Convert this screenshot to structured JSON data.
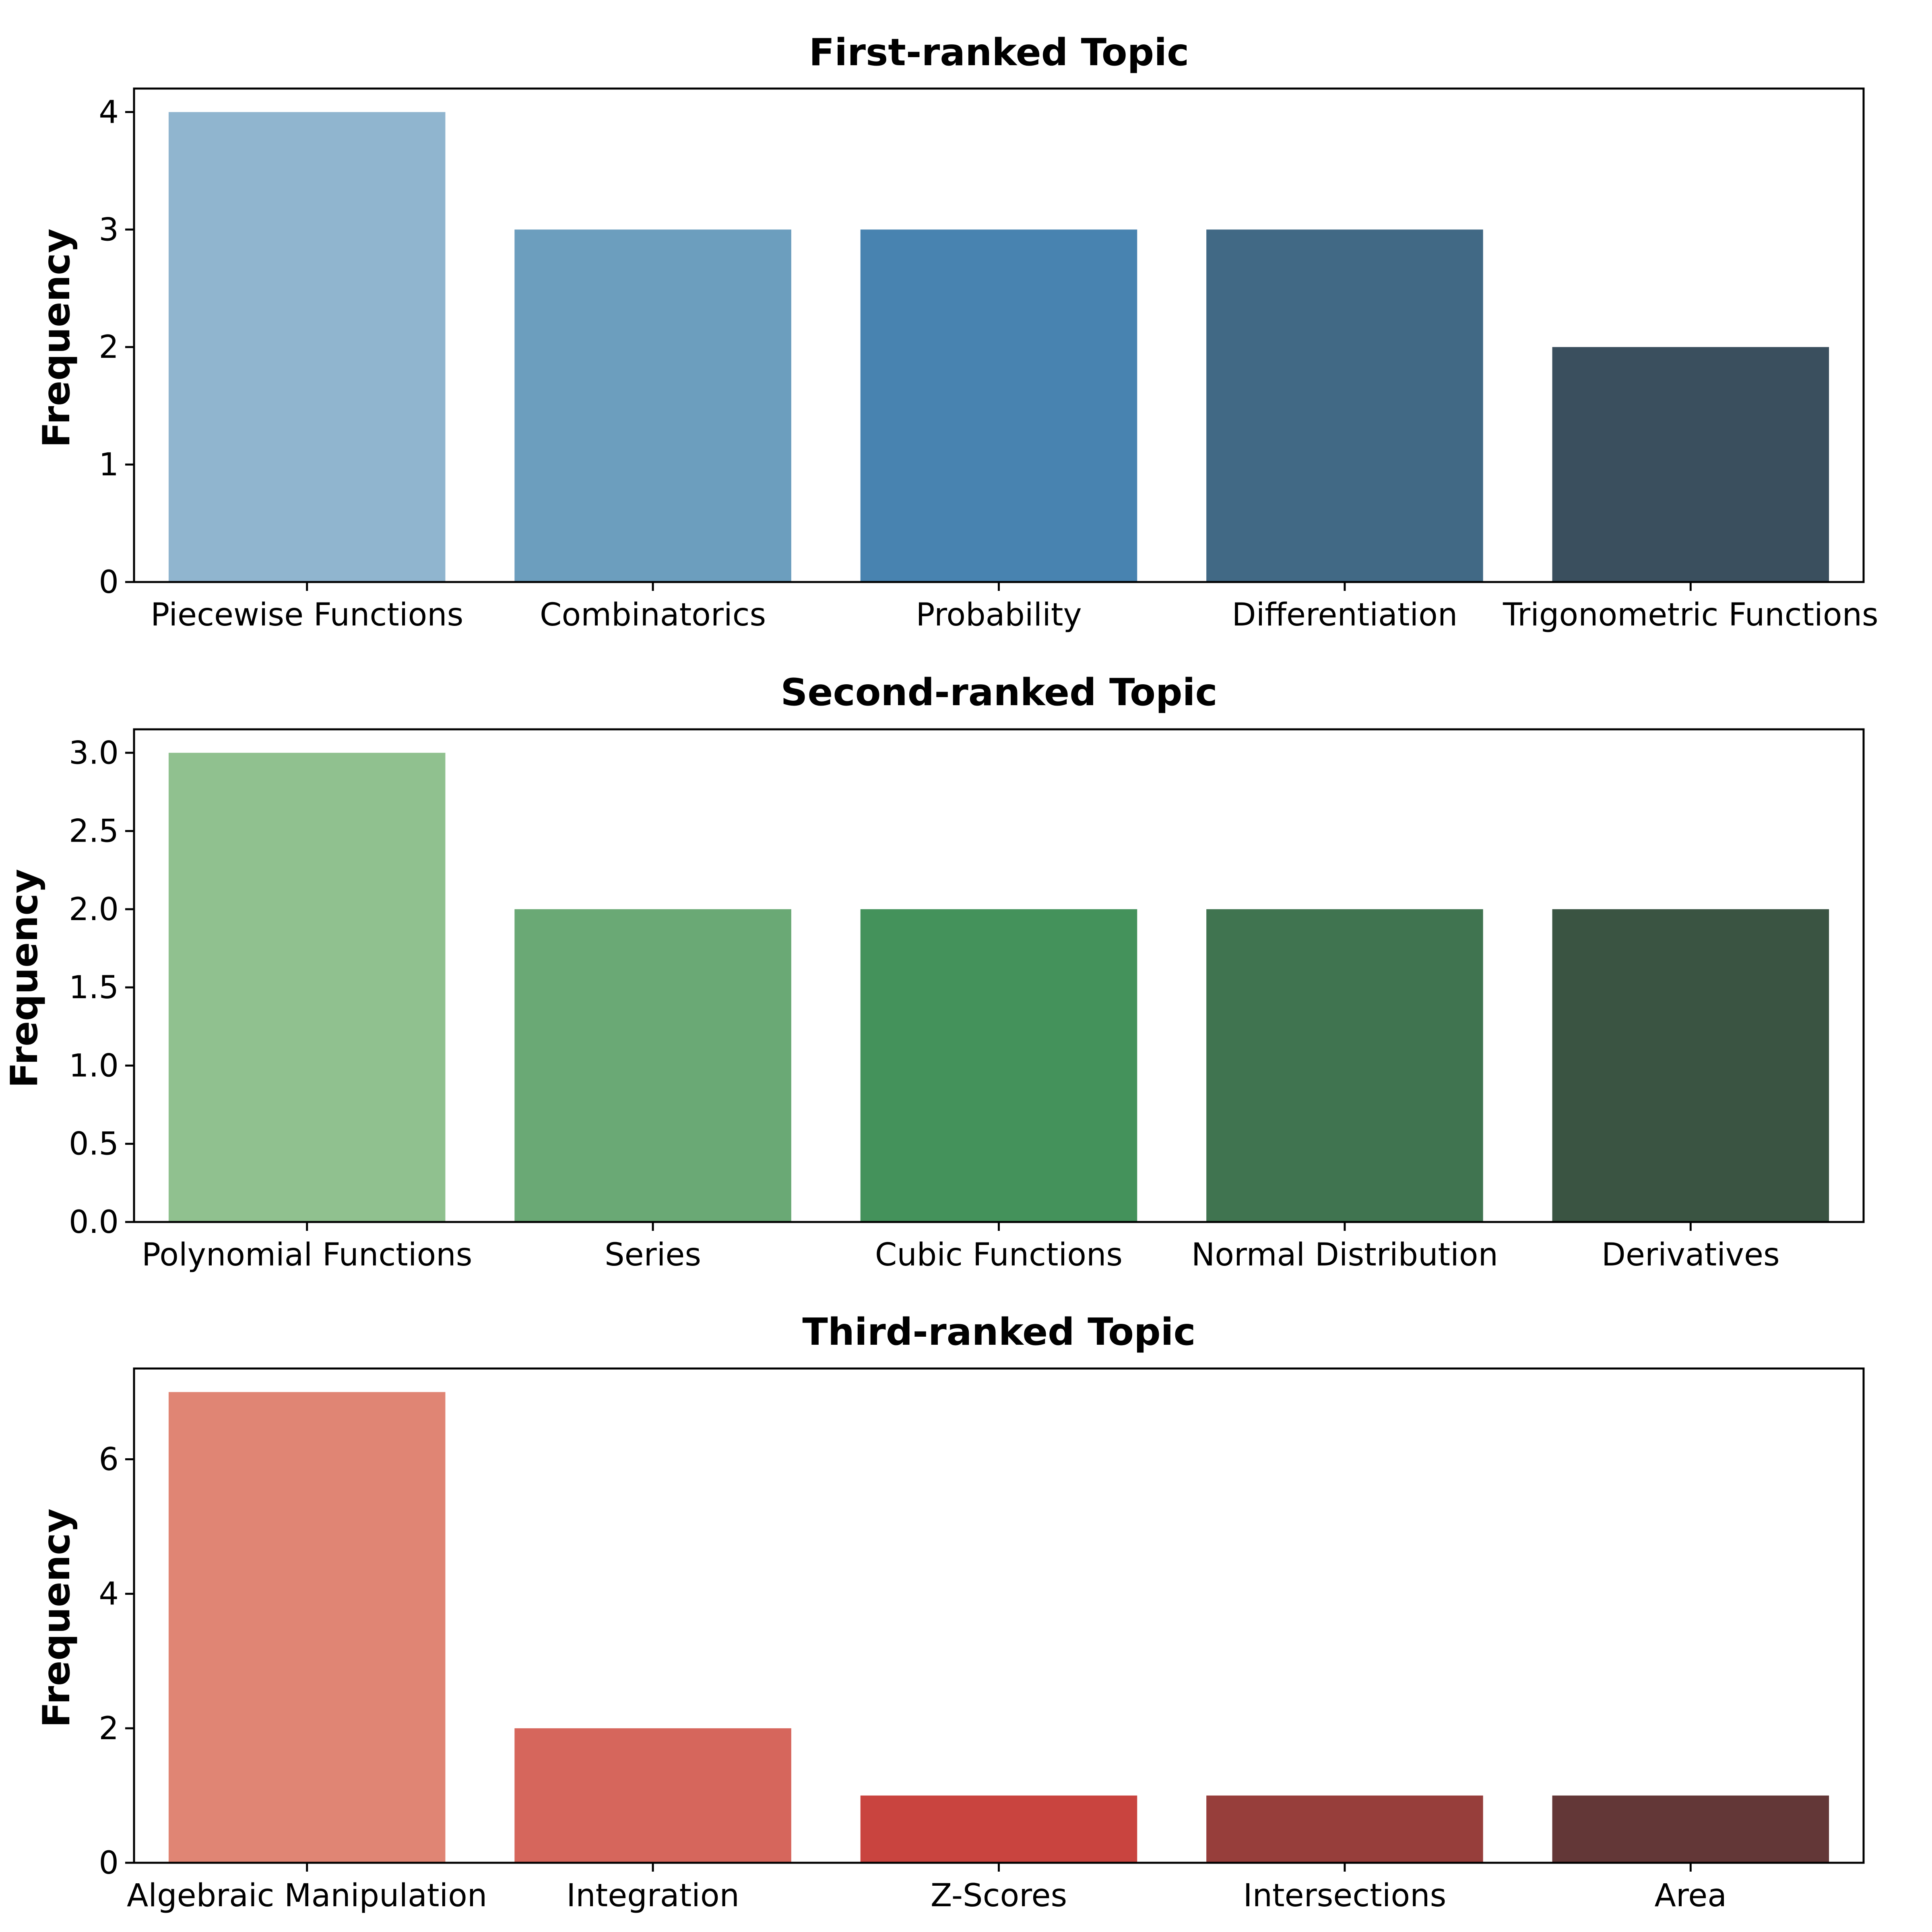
{
  "chart_data": [
    {
      "type": "bar",
      "title": "First-ranked Topic",
      "xlabel": "",
      "ylabel": "Frequency",
      "categories": [
        "Piecewise Functions",
        "Combinatorics",
        "Probability",
        "Differentiation",
        "Trigonometric Functions"
      ],
      "values": [
        4,
        3,
        3,
        3,
        2
      ],
      "colors": [
        "#90b5cf",
        "#6c9ebe",
        "#4883b0",
        "#416985",
        "#3a4f5e"
      ],
      "ylim": [
        0,
        4.2
      ],
      "yticks": [
        0,
        1,
        2,
        3,
        4
      ],
      "ytick_labels": [
        "0",
        "1",
        "2",
        "3",
        "4"
      ],
      "grid": false
    },
    {
      "type": "bar",
      "title": "Second-ranked Topic",
      "xlabel": "",
      "ylabel": "Frequency",
      "categories": [
        "Polynomial Functions",
        "Series",
        "Cubic Functions",
        "Normal Distribution",
        "Derivatives"
      ],
      "values": [
        3,
        2,
        2,
        2,
        2
      ],
      "colors": [
        "#90c18f",
        "#6aa975",
        "#44925b",
        "#407450",
        "#3a5442"
      ],
      "ylim": [
        0,
        3.15
      ],
      "yticks": [
        0,
        0.5,
        1,
        1.5,
        2,
        2.5,
        3
      ],
      "ytick_labels": [
        "0.0",
        "0.5",
        "1.0",
        "1.5",
        "2.0",
        "2.5",
        "3.0"
      ],
      "grid": false
    },
    {
      "type": "bar",
      "title": "Third-ranked Topic",
      "xlabel": "",
      "ylabel": "Frequency",
      "categories": [
        "Algebraic Manipulation",
        "Integration",
        "Z-Scores",
        "Intersections",
        "Area"
      ],
      "values": [
        7,
        2,
        1,
        1,
        1
      ],
      "colors": [
        "#e08574",
        "#d6665c",
        "#c9443f",
        "#973e3b",
        "#633737"
      ],
      "ylim": [
        0,
        7.35
      ],
      "yticks": [
        0,
        2,
        4,
        6
      ],
      "ytick_labels": [
        "0",
        "2",
        "4",
        "6"
      ],
      "grid": false
    }
  ]
}
